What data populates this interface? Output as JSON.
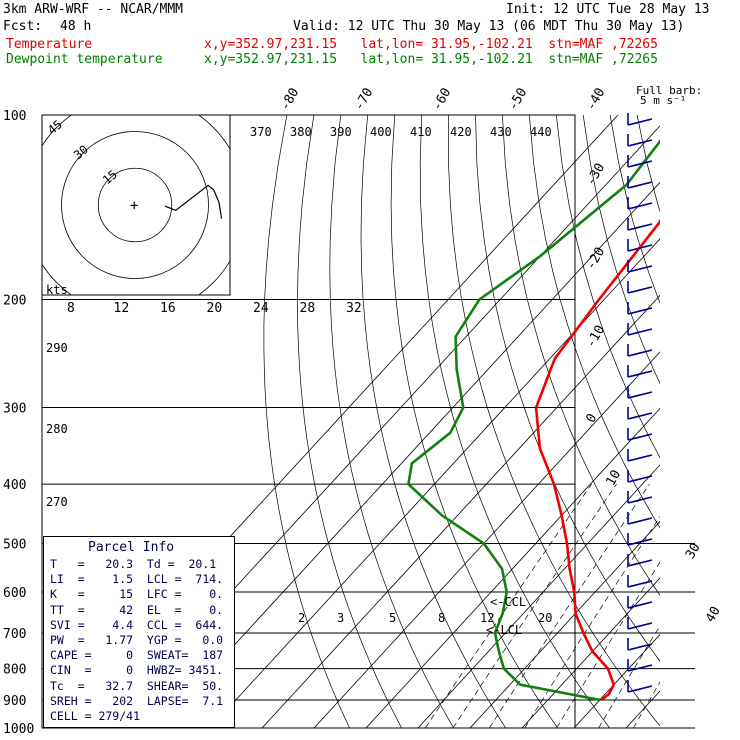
{
  "header": {
    "model": "3km ARW-WRF -- NCAR/MMM",
    "init": "Init: 12 UTC Tue 28 May 13",
    "fcst_label": "Fcst:",
    "fcst_value": "48 h",
    "valid": "Valid: 12 UTC Thu 30 May 13 (06 MDT Thu 30 May 13)",
    "temp_label": "Temperature",
    "temp_loc": "x,y=352.97,231.15   lat,lon= 31.95,-102.21  stn=MAF ,72265",
    "dew_label": "Dewpoint temperature",
    "dew_loc": "x,y=352.97,231.15   lat,lon= 31.95,-102.21  stn=MAF ,72265"
  },
  "colors": {
    "temperature": "#ee0000",
    "dewpoint": "#108010",
    "info_text": "#000050",
    "wind": "#000090"
  },
  "parcel_info": {
    "title": "Parcel Info",
    "rows": [
      "T   =   20.3  Td =  20.1",
      "LI  =    1.5  LCL =  714.",
      "K   =     15  LFC =    0.",
      "TT  =     42  EL  =    0.",
      "SVI =    4.4  CCL =  644.",
      "PW  =   1.77  YGP =   0.0",
      "CAPE =     0  SWEAT=  187",
      "CIN  =     0  HWBZ= 3451.",
      "Tc  =   32.7  SHEAR=  50.",
      "SREH =   202  LAPSE=  7.1",
      "CELL = 279/41"
    ]
  },
  "chart_data": {
    "type": "line",
    "title": "",
    "xlabel": "",
    "ylabel": "",
    "pressure_levels": [
      100,
      200,
      300,
      400,
      500,
      600,
      700,
      800,
      900,
      1000
    ],
    "temp_labels": [
      -80,
      -70,
      -60,
      -50,
      -40,
      -30,
      -20,
      -10,
      0,
      10,
      20,
      30,
      40
    ],
    "theta_labels": [
      370,
      380,
      390,
      400,
      410,
      420,
      430,
      440
    ],
    "hodo_speed_labels": [
      8,
      12,
      16,
      20,
      24,
      28,
      32
    ],
    "mixing_labels": [
      2,
      3,
      5,
      8,
      12,
      20
    ],
    "dry_adiabat_labels": [
      290,
      280,
      270
    ],
    "hodo_ring_labels": [
      15,
      30,
      45
    ],
    "hodo_kts_label": "kts",
    "hodo_ring_spacing_kts": 15,
    "annotations": {
      "lcl": "<-LCL",
      "ccl": "<-CCL",
      "wind_key": "Full barb:\n5 m s⁻¹"
    },
    "series": [
      {
        "name": "Temperature",
        "pressure": [
          100,
          120,
          150,
          200,
          250,
          300,
          350,
          400,
          450,
          500,
          550,
          600,
          650,
          700,
          750,
          800,
          850,
          880,
          900
        ],
        "temperature": [
          -60,
          -57,
          -53,
          -51,
          -49,
          -44,
          -36,
          -27,
          -20,
          -14,
          -9,
          -4,
          0,
          5,
          10,
          16,
          20,
          20.7,
          20.3
        ]
      },
      {
        "name": "Dewpoint temperature",
        "pressure": [
          100,
          130,
          170,
          200,
          230,
          260,
          300,
          330,
          370,
          400,
          450,
          500,
          550,
          600,
          650,
          700,
          750,
          800,
          850,
          900
        ],
        "temperature": [
          -68,
          -66,
          -70,
          -74,
          -72,
          -66,
          -58,
          -56,
          -58,
          -55,
          -43,
          -30,
          -22,
          -17,
          -14,
          -12,
          -8,
          -4,
          2,
          20.1
        ]
      }
    ],
    "hodograph": {
      "u": [
        0,
        4,
        8,
        12,
        16,
        18,
        20,
        21
      ],
      "v": [
        5,
        4,
        6,
        8,
        10,
        9,
        6,
        2
      ]
    },
    "ylim": [
      100,
      1000
    ]
  }
}
